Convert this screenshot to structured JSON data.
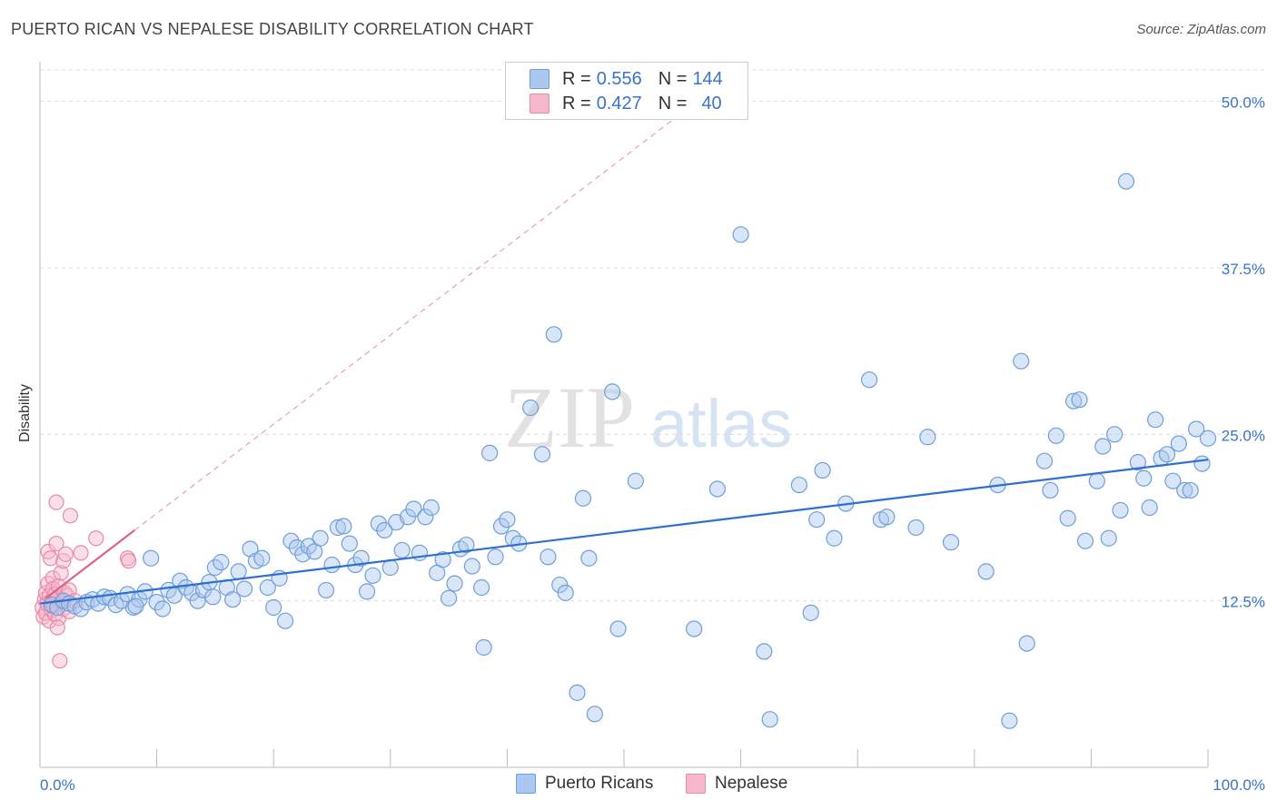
{
  "header": {
    "title": "PUERTO RICAN VS NEPALESE DISABILITY CORRELATION CHART",
    "source": "Source: ZipAtlas.com"
  },
  "colors": {
    "blue_fill": "#aac8f0",
    "blue_stroke": "#6f9fd8",
    "blue_line": "#2f6fd0",
    "pink_fill": "#f6b8cc",
    "pink_stroke": "#e88aa8",
    "pink_line": "#e0608a",
    "tick_text": "#3a74c7"
  },
  "legend": {
    "rows": [
      {
        "r_label": "R =",
        "r_value": "0.556",
        "n_label": "N =",
        "n_value": "144"
      },
      {
        "r_label": "R =",
        "r_value": "0.427",
        "n_label": "N =",
        "n_value": "40"
      }
    ]
  },
  "bottom_legend": {
    "series1": "Puerto Ricans",
    "series2": "Nepalese"
  },
  "watermark": {
    "part1": "ZIP",
    "part2": "atlas"
  },
  "chart_data": {
    "type": "scatter",
    "title": "PUERTO RICAN VS NEPALESE DISABILITY CORRELATION CHART",
    "xlabel": "",
    "ylabel": "Disability",
    "xlim": [
      0,
      100
    ],
    "ylim": [
      0,
      52.5
    ],
    "x_tick_labels": [
      "0.0%",
      "100.0%"
    ],
    "y_ticks": [
      12.5,
      25.0,
      37.5,
      50.0
    ],
    "y_tick_labels": [
      "12.5%",
      "25.0%",
      "37.5%",
      "50.0%"
    ],
    "grid": true,
    "legend_position": "top-center",
    "series": [
      {
        "name": "Puerto Ricans",
        "r": 0.556,
        "n": 144,
        "trend": {
          "x": [
            0,
            100
          ],
          "y": [
            12.3,
            23.1
          ]
        },
        "points": [
          [
            1,
            12.2
          ],
          [
            1.5,
            12.0
          ],
          [
            2,
            12.5
          ],
          [
            2.5,
            12.3
          ],
          [
            3,
            12.1
          ],
          [
            3.5,
            11.9
          ],
          [
            4,
            12.4
          ],
          [
            4.5,
            12.6
          ],
          [
            5,
            12.3
          ],
          [
            5.5,
            12.8
          ],
          [
            6,
            12.7
          ],
          [
            6.5,
            12.2
          ],
          [
            7,
            12.5
          ],
          [
            7.5,
            13.0
          ],
          [
            8,
            12.0
          ],
          [
            8.5,
            12.6
          ],
          [
            9,
            13.2
          ],
          [
            9.5,
            15.7
          ],
          [
            10,
            12.4
          ],
          [
            10.5,
            11.9
          ],
          [
            11,
            13.3
          ],
          [
            11.5,
            12.9
          ],
          [
            12,
            14.0
          ],
          [
            12.5,
            13.5
          ],
          [
            13,
            13.1
          ],
          [
            13.5,
            12.5
          ],
          [
            14,
            13.3
          ],
          [
            14.5,
            13.9
          ],
          [
            15,
            15.0
          ],
          [
            15.5,
            15.4
          ],
          [
            16,
            13.5
          ],
          [
            16.5,
            12.6
          ],
          [
            17,
            14.7
          ],
          [
            17.5,
            13.4
          ],
          [
            18,
            16.4
          ],
          [
            18.5,
            15.5
          ],
          [
            19,
            15.7
          ],
          [
            19.5,
            13.5
          ],
          [
            20,
            12.0
          ],
          [
            20.5,
            14.2
          ],
          [
            21,
            11.0
          ],
          [
            21.5,
            17.0
          ],
          [
            22,
            16.5
          ],
          [
            22.5,
            16.0
          ],
          [
            23,
            16.6
          ],
          [
            23.5,
            16.2
          ],
          [
            24,
            17.2
          ],
          [
            24.5,
            13.3
          ],
          [
            25,
            15.2
          ],
          [
            25.5,
            18.0
          ],
          [
            26,
            18.1
          ],
          [
            26.5,
            16.8
          ],
          [
            27,
            15.2
          ],
          [
            27.5,
            15.7
          ],
          [
            28,
            13.2
          ],
          [
            28.5,
            14.4
          ],
          [
            29,
            18.3
          ],
          [
            29.5,
            17.8
          ],
          [
            30,
            15.0
          ],
          [
            30.5,
            18.4
          ],
          [
            31,
            16.3
          ],
          [
            31.5,
            18.8
          ],
          [
            32,
            19.4
          ],
          [
            32.5,
            16.1
          ],
          [
            33,
            18.8
          ],
          [
            33.5,
            19.5
          ],
          [
            34,
            14.6
          ],
          [
            34.5,
            15.6
          ],
          [
            35,
            12.7
          ],
          [
            35.5,
            13.8
          ],
          [
            36,
            16.4
          ],
          [
            36.5,
            16.7
          ],
          [
            37,
            15.1
          ],
          [
            38,
            9.0
          ],
          [
            38.5,
            23.6
          ],
          [
            39,
            15.8
          ],
          [
            39.5,
            18.1
          ],
          [
            40,
            18.6
          ],
          [
            40.5,
            17.2
          ],
          [
            41,
            16.8
          ],
          [
            42,
            27.0
          ],
          [
            43,
            23.5
          ],
          [
            43.5,
            15.8
          ],
          [
            44,
            32.5
          ],
          [
            44.5,
            13.7
          ],
          [
            45,
            13.1
          ],
          [
            46,
            5.6
          ],
          [
            46.5,
            20.2
          ],
          [
            47,
            15.7
          ],
          [
            47.5,
            4.0
          ],
          [
            49,
            28.2
          ],
          [
            49.5,
            10.4
          ],
          [
            51,
            21.5
          ],
          [
            56,
            10.4
          ],
          [
            58,
            20.9
          ],
          [
            60,
            40.0
          ],
          [
            62,
            8.7
          ],
          [
            62.5,
            3.6
          ],
          [
            65,
            21.2
          ],
          [
            66,
            11.6
          ],
          [
            66.5,
            18.6
          ],
          [
            67,
            22.3
          ],
          [
            68,
            17.2
          ],
          [
            69,
            19.8
          ],
          [
            71,
            29.1
          ],
          [
            72,
            18.6
          ],
          [
            72.5,
            18.8
          ],
          [
            75,
            18.0
          ],
          [
            76,
            24.8
          ],
          [
            78,
            16.9
          ],
          [
            81,
            14.7
          ],
          [
            82,
            21.2
          ],
          [
            83,
            3.5
          ],
          [
            84,
            30.5
          ],
          [
            84.5,
            9.3
          ],
          [
            86,
            23.0
          ],
          [
            86.5,
            20.8
          ],
          [
            87,
            24.9
          ],
          [
            88,
            18.7
          ],
          [
            88.5,
            27.5
          ],
          [
            89,
            27.6
          ],
          [
            89.5,
            17.0
          ],
          [
            90.5,
            21.5
          ],
          [
            91,
            24.1
          ],
          [
            91.5,
            17.2
          ],
          [
            92,
            25.0
          ],
          [
            92.5,
            19.3
          ],
          [
            93,
            44.0
          ],
          [
            94,
            22.9
          ],
          [
            94.5,
            21.7
          ],
          [
            95,
            19.5
          ],
          [
            95.5,
            26.1
          ],
          [
            96,
            23.2
          ],
          [
            96.5,
            23.5
          ],
          [
            97,
            21.5
          ],
          [
            97.5,
            24.3
          ],
          [
            98,
            20.8
          ],
          [
            98.5,
            20.8
          ],
          [
            99,
            25.4
          ],
          [
            99.5,
            22.8
          ],
          [
            100,
            24.7
          ],
          [
            8.2,
            12.1
          ],
          [
            14.8,
            12.8
          ],
          [
            37.8,
            13.5
          ]
        ]
      },
      {
        "name": "Nepalese",
        "r": 0.427,
        "n": 40,
        "trend": {
          "x": [
            0.5,
            8.1
          ],
          "y": [
            12.7,
            17.8
          ]
        },
        "trend_extension": {
          "x": [
            8.1,
            57.0
          ],
          "y": [
            17.8,
            50.5
          ]
        },
        "points": [
          [
            0.2,
            12.0
          ],
          [
            0.3,
            11.3
          ],
          [
            0.4,
            12.6
          ],
          [
            0.5,
            13.1
          ],
          [
            0.5,
            11.6
          ],
          [
            0.6,
            12.3
          ],
          [
            0.7,
            13.8
          ],
          [
            0.7,
            16.2
          ],
          [
            0.8,
            11.0
          ],
          [
            0.8,
            12.9
          ],
          [
            0.9,
            15.7
          ],
          [
            1.0,
            12.5
          ],
          [
            1.0,
            11.8
          ],
          [
            1.1,
            14.2
          ],
          [
            1.1,
            13.4
          ],
          [
            1.2,
            12.1
          ],
          [
            1.3,
            13.0
          ],
          [
            1.3,
            11.5
          ],
          [
            1.4,
            16.8
          ],
          [
            1.4,
            19.9
          ],
          [
            1.5,
            12.7
          ],
          [
            1.6,
            11.2
          ],
          [
            1.6,
            13.6
          ],
          [
            1.7,
            8.0
          ],
          [
            1.8,
            14.6
          ],
          [
            1.9,
            12.4
          ],
          [
            2.0,
            15.5
          ],
          [
            2.0,
            11.9
          ],
          [
            2.1,
            13.1
          ],
          [
            2.2,
            16.0
          ],
          [
            2.3,
            12.9
          ],
          [
            2.5,
            13.3
          ],
          [
            2.5,
            11.7
          ],
          [
            2.6,
            18.9
          ],
          [
            3.0,
            12.5
          ],
          [
            3.5,
            16.1
          ],
          [
            4.8,
            17.2
          ],
          [
            7.5,
            15.7
          ],
          [
            7.6,
            15.5
          ],
          [
            1.5,
            10.5
          ]
        ]
      }
    ]
  }
}
